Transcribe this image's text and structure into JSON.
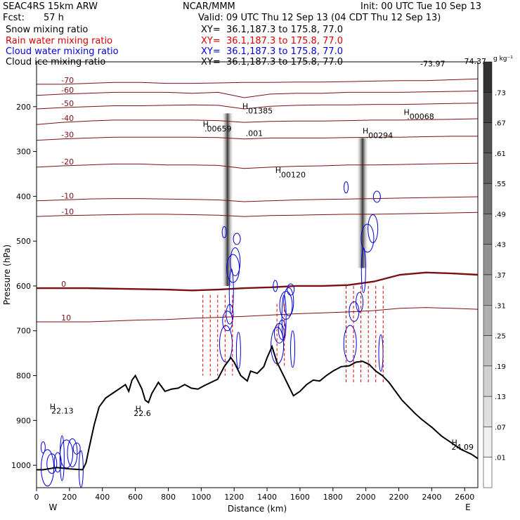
{
  "header": {
    "model": "SEAC4RS 15km ARW",
    "center": "NCAR/MMM",
    "init": "Init: 00 UTC Tue 10 Sep 13",
    "fcst_label": "Fcst:",
    "fcst_value": "57 h",
    "valid": "Valid: 09 UTC Thu 12 Sep 13 (04 CDT Thu 12 Sep 13)"
  },
  "fields": [
    {
      "name": "Snow mixing ratio",
      "xy": "XY=  36.1,187.3 to 175.8, 77.0",
      "color": "#000000"
    },
    {
      "name": "Rain water mixing ratio",
      "xy": "XY=  36.1,187.3 to 175.8, 77.0",
      "color": "#dd0000"
    },
    {
      "name": "Cloud water mixing ratio",
      "xy": "XY=  36.1,187.3 to 175.8, 77.0",
      "color": "#0000dd"
    },
    {
      "name": "Cloud ice mixing ratio",
      "xy": "XY=  36.1,187.3 to 175.8, 77.0",
      "color": "#000000"
    }
  ],
  "chart_data": {
    "type": "contour-cross-section",
    "xlabel": "Distance (km)",
    "ylabel": "Pressure (hPa)",
    "xlim": [
      0,
      2680
    ],
    "ylim": [
      1050,
      100
    ],
    "x_ticks": [
      0,
      200,
      400,
      600,
      800,
      1000,
      1200,
      1400,
      1600,
      1800,
      2000,
      2200,
      2400,
      2600
    ],
    "y_ticks": [
      1000,
      900,
      800,
      700,
      600,
      500,
      400,
      300,
      200
    ],
    "y_tick_labels": [
      "1000",
      "900",
      "800",
      "700",
      "600",
      "500",
      "400",
      "300",
      "200"
    ],
    "x_end_labels": {
      "left": "W",
      "right": "E"
    },
    "colorbar": {
      "unit": "g kg⁻¹",
      "levels": [
        ".73",
        ".67",
        ".61",
        ".55",
        ".49",
        ".43",
        ".37",
        ".31",
        ".25",
        ".19",
        ".13",
        ".07",
        ".01"
      ]
    },
    "terrain": [
      [
        0,
        1010
      ],
      [
        40,
        1010
      ],
      [
        120,
        1005
      ],
      [
        200,
        1008
      ],
      [
        280,
        1010
      ],
      [
        300,
        995
      ],
      [
        320,
        960
      ],
      [
        350,
        910
      ],
      [
        380,
        870
      ],
      [
        420,
        850
      ],
      [
        460,
        840
      ],
      [
        500,
        830
      ],
      [
        540,
        820
      ],
      [
        560,
        835
      ],
      [
        580,
        810
      ],
      [
        600,
        800
      ],
      [
        620,
        815
      ],
      [
        640,
        830
      ],
      [
        660,
        855
      ],
      [
        680,
        860
      ],
      [
        700,
        840
      ],
      [
        740,
        815
      ],
      [
        760,
        825
      ],
      [
        780,
        835
      ],
      [
        820,
        830
      ],
      [
        860,
        828
      ],
      [
        900,
        820
      ],
      [
        940,
        828
      ],
      [
        980,
        830
      ],
      [
        1020,
        822
      ],
      [
        1060,
        815
      ],
      [
        1100,
        808
      ],
      [
        1140,
        780
      ],
      [
        1180,
        760
      ],
      [
        1200,
        770
      ],
      [
        1240,
        800
      ],
      [
        1280,
        812
      ],
      [
        1300,
        790
      ],
      [
        1340,
        795
      ],
      [
        1380,
        780
      ],
      [
        1400,
        760
      ],
      [
        1430,
        735
      ],
      [
        1460,
        770
      ],
      [
        1500,
        800
      ],
      [
        1540,
        830
      ],
      [
        1560,
        845
      ],
      [
        1600,
        835
      ],
      [
        1640,
        820
      ],
      [
        1680,
        810
      ],
      [
        1720,
        812
      ],
      [
        1760,
        800
      ],
      [
        1800,
        790
      ],
      [
        1850,
        780
      ],
      [
        1900,
        778
      ],
      [
        1940,
        770
      ],
      [
        1980,
        768
      ],
      [
        2020,
        775
      ],
      [
        2060,
        790
      ],
      [
        2100,
        800
      ],
      [
        2140,
        815
      ],
      [
        2180,
        835
      ],
      [
        2220,
        855
      ],
      [
        2260,
        870
      ],
      [
        2300,
        885
      ],
      [
        2340,
        898
      ],
      [
        2400,
        915
      ],
      [
        2460,
        935
      ],
      [
        2520,
        950
      ],
      [
        2580,
        965
      ],
      [
        2640,
        975
      ],
      [
        2680,
        985
      ]
    ],
    "isotherms": [
      {
        "label": "-70",
        "p": [
          150,
          150,
          148,
          146,
          146,
          148,
          148,
          147,
          146,
          146,
          145,
          145,
          144,
          143,
          142,
          142,
          140,
          138
        ]
      },
      {
        "label": "-60",
        "p": [
          175,
          172,
          170,
          168,
          168,
          168,
          170,
          168,
          180,
          172,
          170,
          170,
          168,
          168,
          168,
          167,
          166,
          165
        ]
      },
      {
        "label": "-50",
        "p": [
          205,
          202,
          200,
          198,
          198,
          197,
          196,
          197,
          205,
          199,
          197,
          196,
          196,
          195,
          195,
          194,
          193,
          192
        ]
      },
      {
        "label": "-40",
        "p": [
          240,
          235,
          232,
          230,
          230,
          230,
          230,
          231,
          235,
          233,
          232,
          232,
          231,
          230,
          230,
          229,
          228,
          227
        ]
      },
      {
        "label": "-30",
        "p": [
          275,
          272,
          270,
          268,
          268,
          268,
          268,
          269,
          272,
          270,
          270,
          270,
          269,
          268,
          268,
          267,
          266,
          266
        ]
      },
      {
        "label": "-20",
        "p": [
          335,
          332,
          330,
          328,
          328,
          330,
          330,
          331,
          338,
          335,
          333,
          332,
          330,
          330,
          329,
          328,
          327,
          326
        ]
      },
      {
        "label": "-10",
        "p": [
          410,
          408,
          406,
          405,
          405,
          406,
          407,
          408,
          412,
          410,
          408,
          407,
          406,
          405,
          404,
          403,
          402,
          401
        ]
      },
      {
        "label": "-10",
        "p": [
          445,
          443,
          442,
          441,
          440,
          440,
          441,
          442,
          445,
          443,
          442,
          441,
          440,
          440,
          439,
          438,
          437,
          436
        ]
      },
      {
        "label": "0",
        "p": [
          605,
          605,
          605,
          606,
          607,
          608,
          610,
          608,
          605,
          603,
          600,
          600,
          598,
          590,
          575,
          570,
          572,
          575
        ],
        "bold": true
      },
      {
        "label": "10",
        "p": [
          680,
          680,
          680,
          678,
          676,
          675,
          672,
          670,
          668,
          665,
          662,
          660,
          658,
          655,
          650,
          648,
          650,
          652
        ]
      }
    ],
    "label_annotations": [
      {
        "text": "H",
        "x": 1010,
        "p": 245
      },
      {
        "text": ".00659",
        "x": 1020,
        "p": 255
      },
      {
        "text": "H",
        "x": 1250,
        "p": 205
      },
      {
        "text": ".01385",
        "x": 1270,
        "p": 215
      },
      {
        "text": ".001",
        "x": 1270,
        "p": 265
      },
      {
        "text": "H",
        "x": 1450,
        "p": 348
      },
      {
        "text": ".00120",
        "x": 1470,
        "p": 358
      },
      {
        "text": "H",
        "x": 2230,
        "p": 218
      },
      {
        "text": ".00068",
        "x": 2250,
        "p": 228
      },
      {
        "text": "H",
        "x": 1980,
        "p": 260
      },
      {
        "text": ".00294",
        "x": 2000,
        "p": 270
      },
      {
        "text": "-73.97",
        "x": 2330,
        "p": 110
      },
      {
        "text": "-74.37",
        "x": 2580,
        "p": 105
      },
      {
        "text": "H",
        "x": 600,
        "p": 880
      },
      {
        "text": "22.6",
        "x": 590,
        "p": 890
      },
      {
        "text": "H",
        "x": 80,
        "p": 875
      },
      {
        "text": "22.13",
        "x": 90,
        "p": 885
      },
      {
        "text": "H",
        "x": 2520,
        "p": 955
      },
      {
        "text": "24.09",
        "x": 2520,
        "p": 965
      }
    ]
  }
}
